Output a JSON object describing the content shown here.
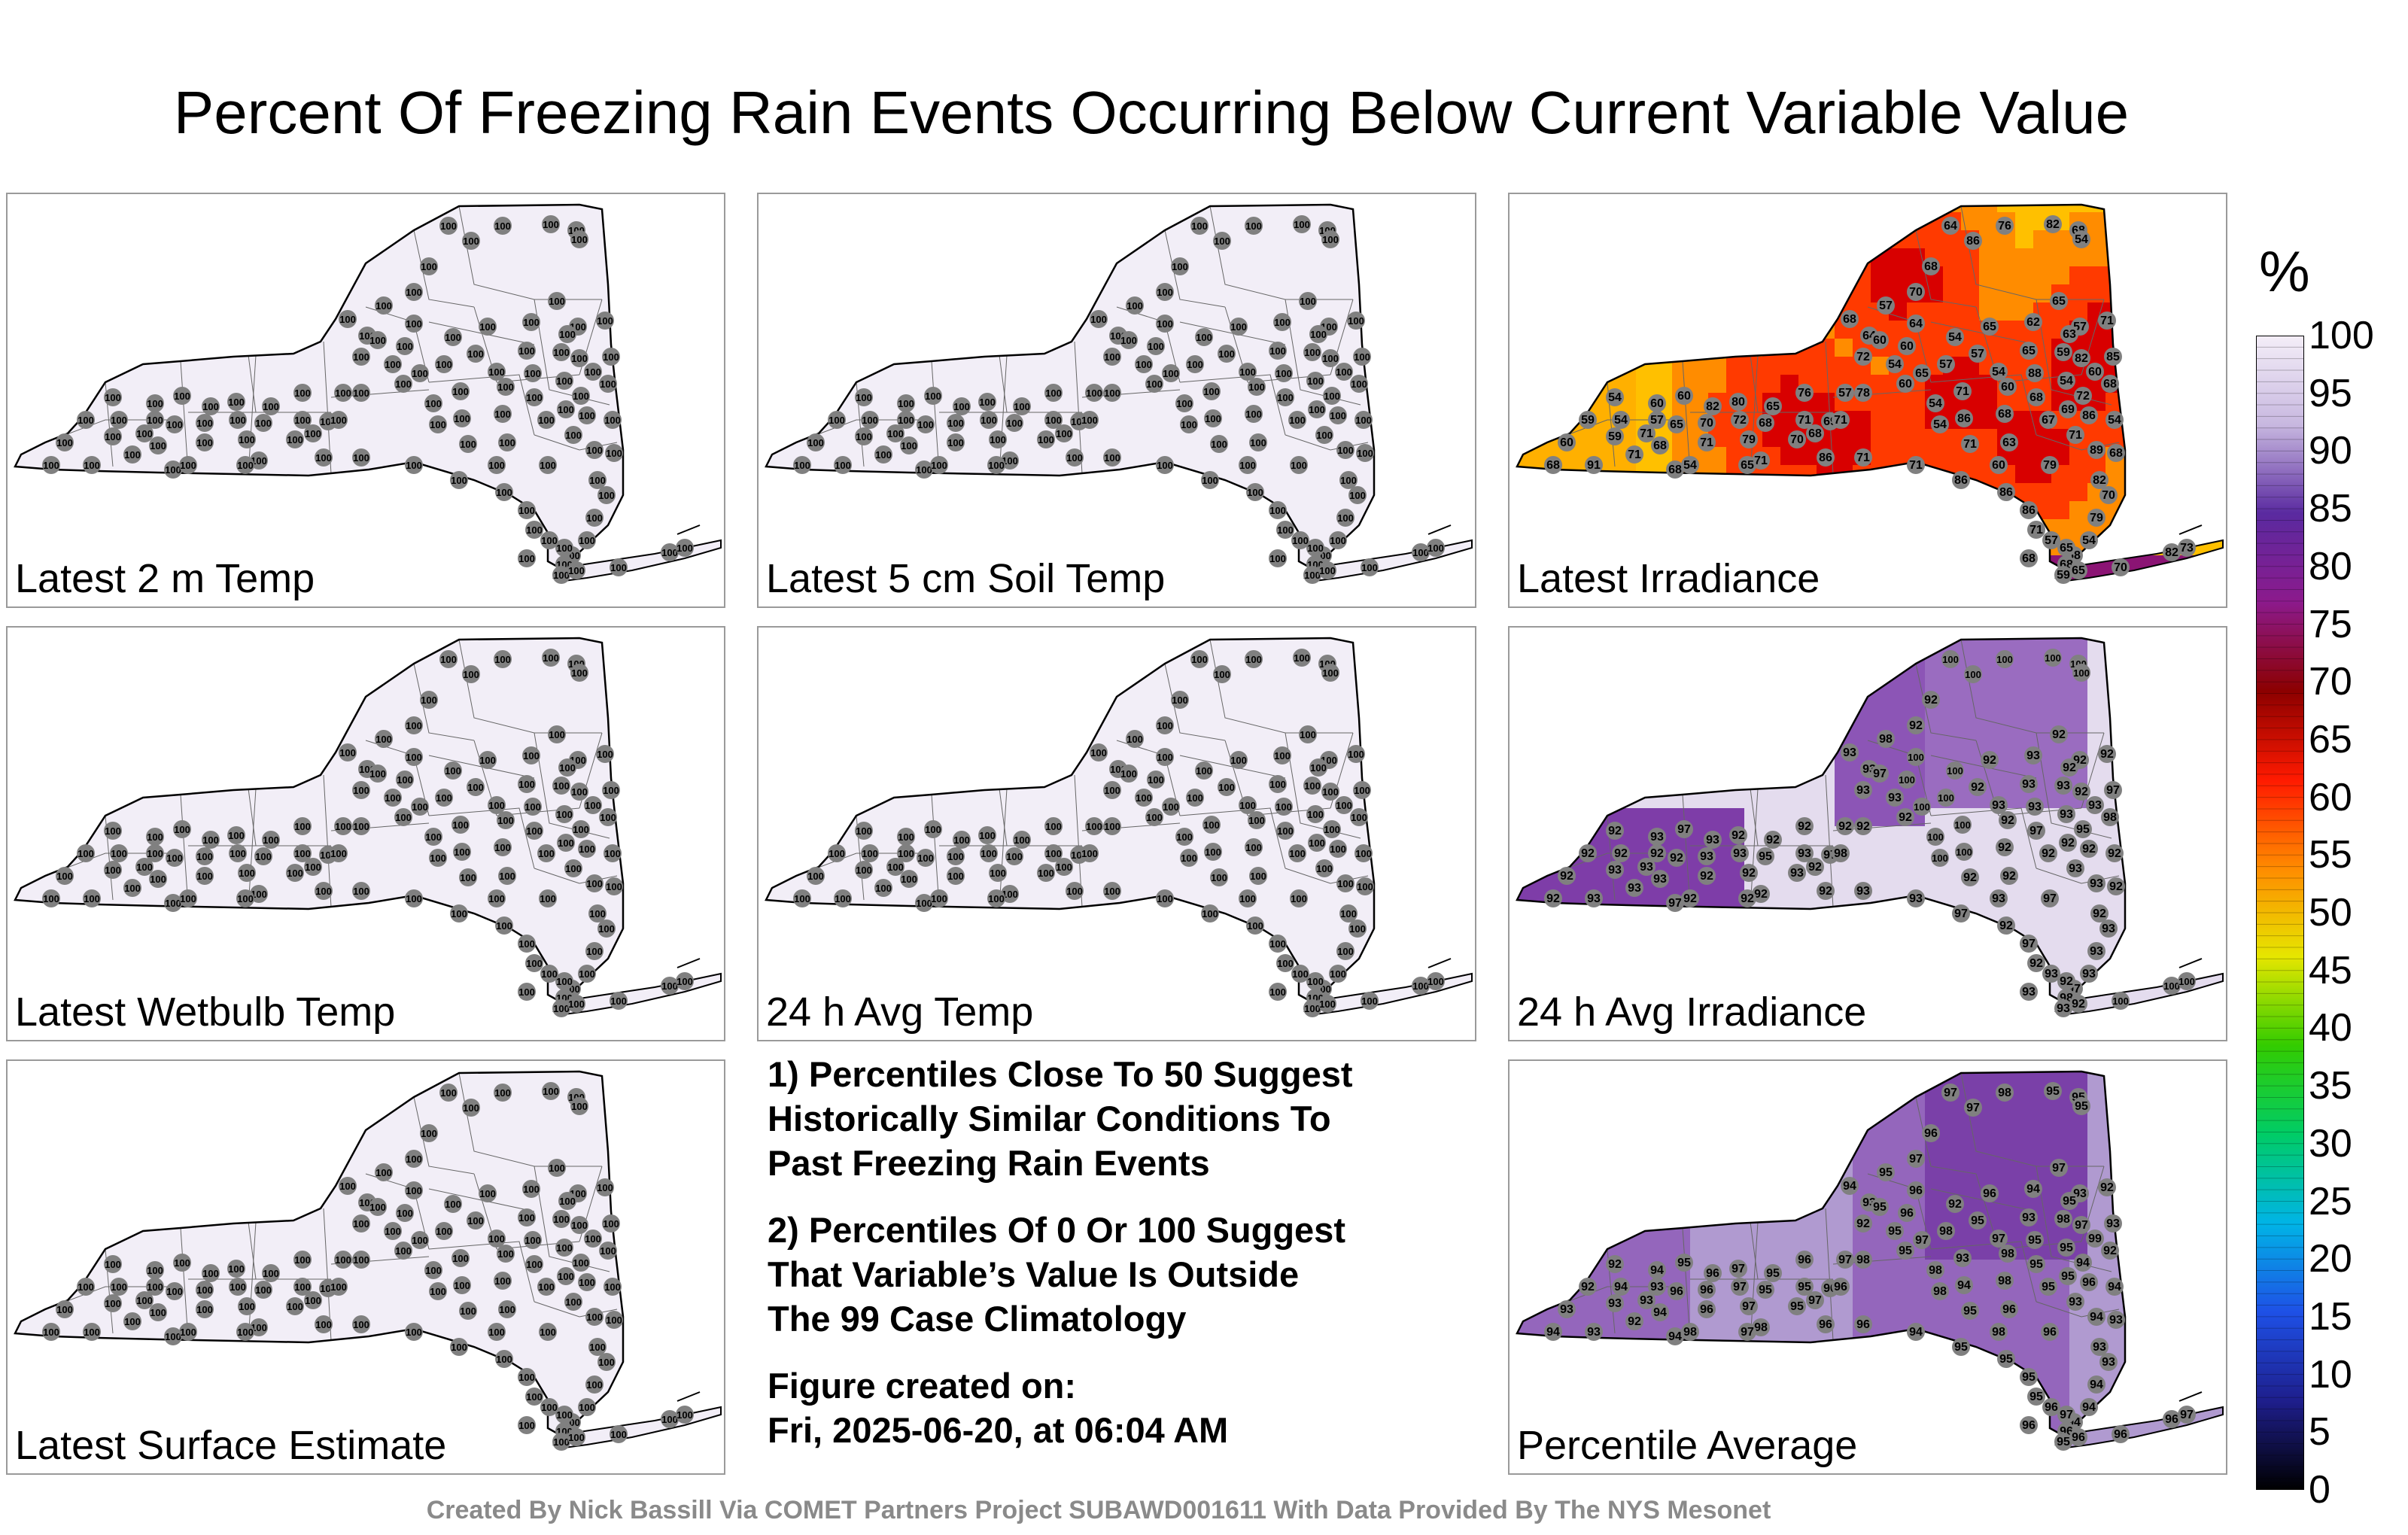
{
  "title": "Percent Of Freezing Rain Events Occurring Below Current Variable Value",
  "colorbar": {
    "unit": "%",
    "ticks": [
      "0",
      "5",
      "10",
      "15",
      "20",
      "25",
      "30",
      "35",
      "40",
      "45",
      "50",
      "55",
      "60",
      "65",
      "70",
      "75",
      "80",
      "85",
      "90",
      "95",
      "100"
    ],
    "colors": [
      "#000000",
      "#1e1e8c",
      "#1e50e6",
      "#00b4e6",
      "#00cc66",
      "#33cc00",
      "#e6e600",
      "#ff8c00",
      "#ff1a00",
      "#8c0000",
      "#8c1a8c",
      "#5a2aa0",
      "#c8b8e0",
      "#f4eef8"
    ]
  },
  "panels": [
    {
      "label": "Latest 2 m Temp",
      "fill": "uniform100",
      "default_value": "100"
    },
    {
      "label": "Latest 5 cm Soil Temp",
      "fill": "uniform100",
      "default_value": "100"
    },
    {
      "label": "Latest Irradiance",
      "fill": "irradiance",
      "values": [
        "68",
        "60",
        "59",
        "59",
        "54",
        "54",
        "57",
        "71",
        "60",
        "68",
        "68",
        "65",
        "60",
        "71",
        "70",
        "82",
        "80",
        "72",
        "79",
        "71",
        "68",
        "65",
        "70",
        "71",
        "76",
        "68",
        "69",
        "71",
        "57",
        "78",
        "72",
        "64",
        "68",
        "60",
        "57",
        "54",
        "60",
        "60",
        "64",
        "65",
        "54",
        "54",
        "57",
        "54",
        "71",
        "86",
        "71",
        "57",
        "65",
        "54",
        "68",
        "60",
        "63",
        "65",
        "62",
        "88",
        "68",
        "67",
        "79",
        "65",
        "59",
        "54",
        "69",
        "71",
        "57",
        "82",
        "72",
        "86",
        "60",
        "89",
        "82",
        "71",
        "85",
        "68",
        "54",
        "68",
        "70",
        "79",
        "54",
        "68",
        "68",
        "59",
        "65",
        "70",
        "82",
        "73",
        "64",
        "86",
        "76",
        "82",
        "68",
        "54",
        "63",
        "68",
        "70",
        "71",
        "86",
        "65",
        "54",
        "71",
        "91",
        "71",
        "86",
        "86",
        "86",
        "71",
        "57",
        "68",
        "65",
        "60",
        "65"
      ]
    },
    {
      "label": "Latest Wetbulb Temp",
      "fill": "uniform100",
      "default_value": "100"
    },
    {
      "label": "24 h Avg Temp",
      "fill": "uniform100",
      "default_value": "100"
    },
    {
      "label": "24 h Avg Irradiance",
      "fill": "irr24",
      "values": [
        "92",
        "92",
        "92",
        "93",
        "92",
        "92",
        "92",
        "93",
        "93",
        "93",
        "97",
        "92",
        "97",
        "92",
        "93",
        "93",
        "92",
        "93",
        "92",
        "92",
        "95",
        "92",
        "93",
        "93",
        "92",
        "92",
        "97",
        "98",
        "92",
        "92",
        "93",
        "93",
        "93",
        "97",
        "98",
        "93",
        "92",
        "100",
        "100",
        "100",
        "100",
        "100",
        "100",
        "100",
        "100",
        "100"
      ]
    },
    {
      "label": "Latest Surface Estimate",
      "fill": "uniform100",
      "default_value": "100"
    },
    {
      "label": "Percentile Average",
      "fill": "average",
      "values": [
        "94",
        "93",
        "92",
        "93",
        "92",
        "94",
        "93",
        "93",
        "94",
        "94",
        "94",
        "96",
        "95",
        "96",
        "96",
        "96",
        "97",
        "97",
        "97",
        "98",
        "95",
        "95",
        "95",
        "95",
        "96",
        "97",
        "96",
        "96",
        "97",
        "98",
        "92",
        "93",
        "94",
        "95",
        "95",
        "95",
        "95",
        "96",
        "96",
        "97",
        "98",
        "98",
        "98",
        "92",
        "93",
        "94",
        "95",
        "95",
        "96",
        "97",
        "98",
        "98",
        "96",
        "93",
        "94",
        "95",
        "95",
        "95",
        "96",
        "97",
        "98",
        "95",
        "95",
        "93",
        "93",
        "97",
        "94",
        "96",
        "99"
      ]
    }
  ],
  "notes": {
    "note1": "1) Percentiles Close To 50 Suggest\nHistorically Similar Conditions To\nPast Freezing Rain Events",
    "note2": "2) Percentiles Of 0 Or 100 Suggest\nThat Variable’s Value Is Outside\nThe 99 Case Climatology",
    "note3": "Figure created on:\nFri, 2025-06-20, at 06:04 AM"
  },
  "credit": "Created By Nick Bassill Via COMET Partners Project SUBAWD001611 With Data Provided By The NYS Mesonet"
}
